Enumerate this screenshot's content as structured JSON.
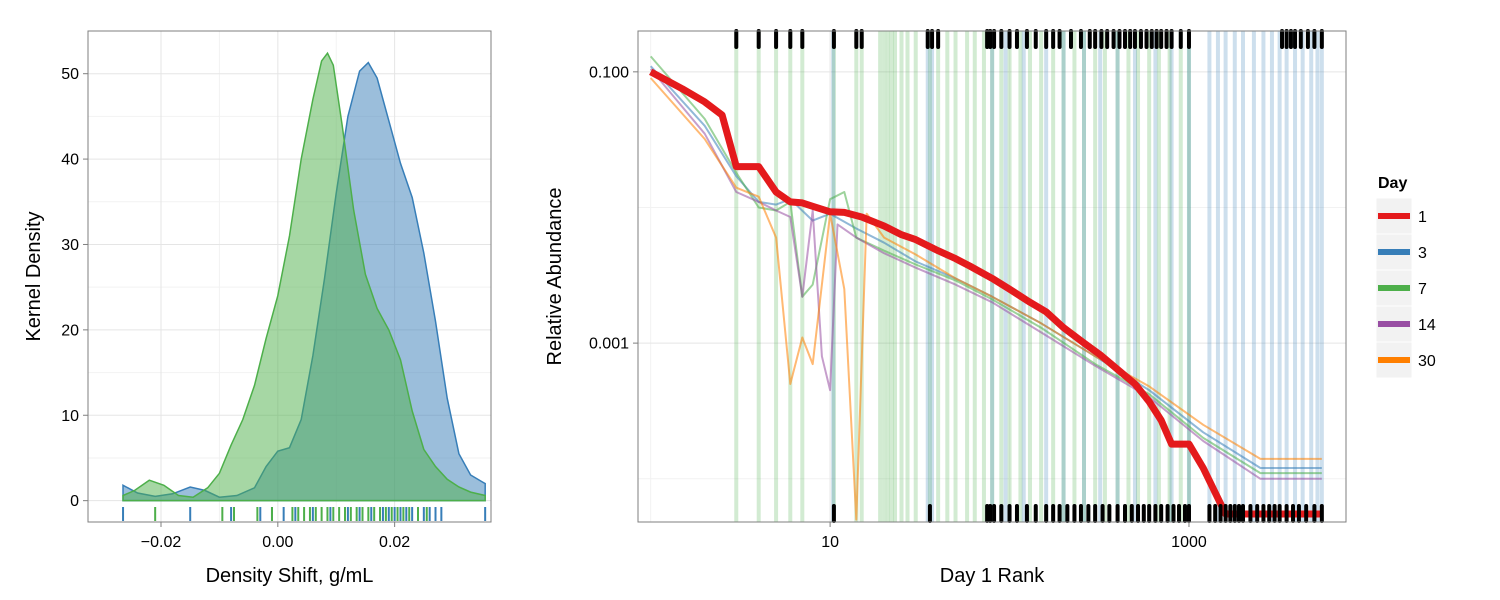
{
  "chart_data": [
    {
      "type": "area",
      "xlabel": "Density Shift, g/mL",
      "ylabel": "Kernel Density",
      "xlim": [
        -0.0325,
        0.0365
      ],
      "ylim": [
        -2.5,
        55
      ],
      "x_ticks": [
        -0.02,
        0.0,
        0.02
      ],
      "x_tick_labels": [
        "−0.02",
        "0.00",
        "0.02"
      ],
      "y_ticks": [
        0,
        10,
        20,
        30,
        40,
        50
      ],
      "y_tick_labels": [
        "0",
        "10",
        "20",
        "30",
        "40",
        "50"
      ],
      "grid": true,
      "series": [
        {
          "color": "#377eb8",
          "fill": "#377eb8",
          "points": [
            [
              -0.0265,
              1.8
            ],
            [
              -0.024,
              0.9
            ],
            [
              -0.021,
              0.5
            ],
            [
              -0.018,
              0.8
            ],
            [
              -0.015,
              1.6
            ],
            [
              -0.0125,
              1.2
            ],
            [
              -0.01,
              0.4
            ],
            [
              -0.007,
              0.6
            ],
            [
              -0.004,
              1.5
            ],
            [
              -0.002,
              4.0
            ],
            [
              0.0,
              5.8
            ],
            [
              0.002,
              6.2
            ],
            [
              0.004,
              9.5
            ],
            [
              0.006,
              17
            ],
            [
              0.008,
              26
            ],
            [
              0.01,
              36
            ],
            [
              0.012,
              45
            ],
            [
              0.014,
              50.3
            ],
            [
              0.0155,
              51.3
            ],
            [
              0.017,
              49.5
            ],
            [
              0.019,
              44.5
            ],
            [
              0.021,
              39.5
            ],
            [
              0.023,
              35.5
            ],
            [
              0.025,
              29
            ],
            [
              0.027,
              21
            ],
            [
              0.029,
              12
            ],
            [
              0.031,
              5.5
            ],
            [
              0.033,
              3
            ],
            [
              0.035,
              2.2
            ],
            [
              0.0355,
              2.0
            ]
          ]
        },
        {
          "color": "#4daf4a",
          "fill": "#4daf4a",
          "points": [
            [
              -0.0265,
              0.6
            ],
            [
              -0.0245,
              1.2
            ],
            [
              -0.022,
              2.4
            ],
            [
              -0.0195,
              1.8
            ],
            [
              -0.017,
              0.6
            ],
            [
              -0.0145,
              0.4
            ],
            [
              -0.012,
              1.5
            ],
            [
              -0.01,
              3.2
            ],
            [
              -0.008,
              6.5
            ],
            [
              -0.006,
              9.5
            ],
            [
              -0.004,
              13.5
            ],
            [
              -0.002,
              19
            ],
            [
              0.0,
              24
            ],
            [
              0.002,
              31
            ],
            [
              0.004,
              40
            ],
            [
              0.006,
              47
            ],
            [
              0.0075,
              51.5
            ],
            [
              0.0085,
              52.4
            ],
            [
              0.0095,
              51
            ],
            [
              0.011,
              44
            ],
            [
              0.013,
              34
            ],
            [
              0.015,
              26.5
            ],
            [
              0.017,
              22.5
            ],
            [
              0.019,
              20
            ],
            [
              0.021,
              16.5
            ],
            [
              0.023,
              10.5
            ],
            [
              0.025,
              6
            ],
            [
              0.027,
              4
            ],
            [
              0.029,
              2.5
            ],
            [
              0.031,
              1.6
            ],
            [
              0.033,
              1.0
            ],
            [
              0.0355,
              0.6
            ]
          ]
        }
      ],
      "rug": [
        {
          "color": "#377eb8",
          "x": [
            -0.0265,
            -0.015,
            -0.008,
            -0.003,
            -0.001,
            0.001,
            0.003,
            0.006,
            0.009,
            0.012,
            0.014,
            0.016,
            0.018,
            0.019,
            0.02,
            0.021,
            0.022,
            0.023,
            0.024,
            0.025,
            0.026,
            0.027,
            0.028,
            0.0355
          ]
        },
        {
          "color": "#4daf4a",
          "x": [
            -0.021,
            -0.0095,
            -0.0075,
            -0.0035,
            -0.001,
            0.0025,
            0.0035,
            0.0045,
            0.0055,
            0.0065,
            0.0075,
            0.0085,
            0.0095,
            0.0105,
            0.0115,
            0.0125,
            0.0135,
            0.0145,
            0.0155,
            0.0165,
            0.0175,
            0.0185,
            0.0195,
            0.0205,
            0.0215,
            0.0225,
            0.024,
            0.0255
          ]
        }
      ]
    },
    {
      "type": "line",
      "xlabel": "Day 1 Rank",
      "ylabel": "Relative Abundance",
      "x_scale": "log",
      "y_scale": "log",
      "xlim": [
        0.85,
        7500
      ],
      "ylim": [
        4.8e-05,
        0.2
      ],
      "x_ticks": [
        10,
        1000
      ],
      "x_tick_labels": [
        "10",
        "1000"
      ],
      "y_ticks": [
        0.001,
        0.1
      ],
      "y_tick_labels": [
        "0.001",
        "0.100"
      ],
      "grid": true,
      "legend": {
        "title": "Day",
        "position": "right",
        "entries": [
          {
            "label": "1",
            "color": "#e41a1c"
          },
          {
            "label": "3",
            "color": "#377eb8"
          },
          {
            "label": "7",
            "color": "#4daf4a"
          },
          {
            "label": "14",
            "color": "#984ea3"
          },
          {
            "label": "30",
            "color": "#ff7f00"
          }
        ]
      },
      "series": [
        {
          "name": "1",
          "color": "#e41a1c",
          "points": [
            [
              1,
              0.1
            ],
            [
              1.5,
              0.075
            ],
            [
              2,
              0.06
            ],
            [
              2.5,
              0.048
            ],
            [
              3,
              0.02
            ],
            [
              4,
              0.02
            ],
            [
              5,
              0.013
            ],
            [
              6,
              0.011
            ],
            [
              7,
              0.0108
            ],
            [
              8,
              0.0102
            ],
            [
              10,
              0.0093
            ],
            [
              12,
              0.0092
            ],
            [
              15,
              0.0085
            ],
            [
              20,
              0.0073
            ],
            [
              25,
              0.0063
            ],
            [
              30,
              0.0058
            ],
            [
              40,
              0.0048
            ],
            [
              50,
              0.0042
            ],
            [
              60,
              0.0037
            ],
            [
              80,
              0.003
            ],
            [
              100,
              0.0025
            ],
            [
              130,
              0.002
            ],
            [
              160,
              0.0017
            ],
            [
              200,
              0.0013
            ],
            [
              260,
              0.001
            ],
            [
              320,
              0.00082
            ],
            [
              400,
              0.00064
            ],
            [
              500,
              0.0005
            ],
            [
              600,
              0.00037
            ],
            [
              700,
              0.00027
            ],
            [
              800,
              0.00018
            ],
            [
              1000,
              0.00018
            ],
            [
              1200,
              0.00012
            ],
            [
              1600,
              5.5e-05
            ],
            [
              5500,
              5.5e-05
            ]
          ]
        },
        {
          "name": "3",
          "color": "#377eb8",
          "points": [
            [
              1,
              0.11
            ],
            [
              2,
              0.04
            ],
            [
              3,
              0.017
            ],
            [
              4,
              0.011
            ],
            [
              5,
              0.0105
            ],
            [
              6,
              0.0115
            ],
            [
              8,
              0.008
            ],
            [
              10,
              0.009
            ],
            [
              14,
              0.007
            ],
            [
              20,
              0.0055
            ],
            [
              30,
              0.004
            ],
            [
              50,
              0.003
            ],
            [
              80,
              0.0022
            ],
            [
              150,
              0.0014
            ],
            [
              300,
              0.0008
            ],
            [
              600,
              0.00045
            ],
            [
              1200,
              0.00022
            ],
            [
              2500,
              0.00012
            ],
            [
              5500,
              0.00012
            ]
          ]
        },
        {
          "name": "7",
          "color": "#4daf4a",
          "points": [
            [
              1,
              0.13
            ],
            [
              2,
              0.045
            ],
            [
              3,
              0.018
            ],
            [
              4,
              0.01
            ],
            [
              5,
              0.0095
            ],
            [
              6,
              0.011
            ],
            [
              7,
              0.0022
            ],
            [
              8,
              0.0027
            ],
            [
              10,
              0.0115
            ],
            [
              12,
              0.013
            ],
            [
              14,
              0.006
            ],
            [
              20,
              0.0048
            ],
            [
              30,
              0.0038
            ],
            [
              50,
              0.0029
            ],
            [
              80,
              0.0021
            ],
            [
              150,
              0.0013
            ],
            [
              300,
              0.0007
            ],
            [
              600,
              0.00042
            ],
            [
              1200,
              0.0002
            ],
            [
              2500,
              0.00011
            ],
            [
              5500,
              0.00011
            ]
          ]
        },
        {
          "name": "14",
          "color": "#984ea3",
          "points": [
            [
              1,
              0.105
            ],
            [
              2,
              0.035
            ],
            [
              3,
              0.013
            ],
            [
              4,
              0.011
            ],
            [
              5,
              0.0095
            ],
            [
              6,
              0.0085
            ],
            [
              7,
              0.0022
            ],
            [
              8,
              0.0095
            ],
            [
              9,
              0.0008
            ],
            [
              10,
              0.00045
            ],
            [
              11,
              0.0075
            ],
            [
              14,
              0.006
            ],
            [
              20,
              0.0046
            ],
            [
              30,
              0.0036
            ],
            [
              50,
              0.0027
            ],
            [
              80,
              0.002
            ],
            [
              150,
              0.0012
            ],
            [
              300,
              0.00068
            ],
            [
              600,
              0.0004
            ],
            [
              1200,
              0.00019
            ],
            [
              2500,
              0.0001
            ],
            [
              5500,
              0.0001
            ]
          ]
        },
        {
          "name": "30",
          "color": "#ff7f00",
          "points": [
            [
              1,
              0.09
            ],
            [
              2,
              0.032
            ],
            [
              3,
              0.014
            ],
            [
              4,
              0.012
            ],
            [
              5,
              0.006
            ],
            [
              6,
              0.0005
            ],
            [
              7,
              0.0011
            ],
            [
              8,
              0.0007
            ],
            [
              10,
              0.009
            ],
            [
              12,
              0.0025
            ],
            [
              14,
              5e-05
            ],
            [
              16,
              0.009
            ],
            [
              20,
              0.006
            ],
            [
              30,
              0.0045
            ],
            [
              50,
              0.003
            ],
            [
              80,
              0.0022
            ],
            [
              150,
              0.0014
            ],
            [
              300,
              0.0008
            ],
            [
              600,
              0.00048
            ],
            [
              1200,
              0.00025
            ],
            [
              2500,
              0.00014
            ],
            [
              5500,
              0.00014
            ]
          ]
        }
      ],
      "absent_ranks": [
        {
          "color": "#4daf4a",
          "x": [
            3,
            4,
            5,
            6,
            7,
            10.5,
            14,
            15,
            19,
            20,
            21,
            22,
            23,
            25,
            27,
            30,
            36,
            40,
            45,
            50,
            58,
            64,
            72,
            80,
            90,
            100,
            115,
            130,
            150,
            175,
            200,
            230,
            260,
            300,
            340,
            400,
            460,
            520,
            600,
            680,
            780,
            900,
            1000
          ]
        },
        {
          "color": "#377eb8",
          "x": [
            10.4,
            35,
            37,
            80,
            95,
            120,
            160,
            200,
            260,
            320,
            400,
            500,
            650,
            800,
            1000,
            1300,
            1450,
            1600,
            1800,
            2000,
            2300,
            2600,
            2900,
            3200,
            3500,
            3900,
            4300,
            4800,
            5200,
            5500
          ]
        }
      ],
      "rug_top": [
        3,
        4,
        5,
        6,
        7,
        10.5,
        14,
        15,
        35,
        37,
        40,
        75,
        78,
        82,
        90,
        100,
        110,
        125,
        140,
        160,
        175,
        190,
        220,
        250,
        280,
        300,
        325,
        350,
        380,
        410,
        440,
        470,
        500,
        540,
        580,
        620,
        660,
        700,
        750,
        800,
        900,
        1000,
        3300,
        3500,
        3700,
        3900,
        4200,
        4600,
        5000,
        5500
      ],
      "rug_bottom": [
        10.5,
        36,
        75,
        78,
        82,
        90,
        100,
        110,
        125,
        140,
        160,
        175,
        190,
        210,
        230,
        250,
        275,
        300,
        330,
        360,
        400,
        440,
        480,
        520,
        560,
        600,
        650,
        700,
        760,
        820,
        880,
        950,
        1000,
        1300,
        1400,
        1500,
        1600,
        1700,
        1800,
        1900,
        2000,
        2200,
        2400,
        2600,
        2800,
        3000,
        3200,
        3500,
        3800,
        4100,
        4500,
        5000,
        5500
      ]
    }
  ]
}
